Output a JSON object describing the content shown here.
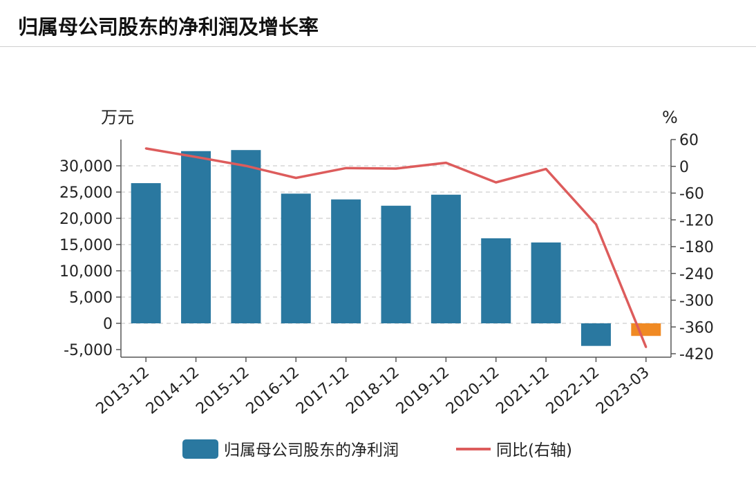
{
  "header": {
    "title": "归属母公司股东的净利润及增长率"
  },
  "chart_data": {
    "type": "bar",
    "categories": [
      "2013-12",
      "2014-12",
      "2015-12",
      "2016-12",
      "2017-12",
      "2018-12",
      "2019-12",
      "2020-12",
      "2021-12",
      "2022-12",
      "2023-03"
    ],
    "series": [
      {
        "name": "归属母公司股东的净利润",
        "type": "bar",
        "axis": "left",
        "color": "#2a78a0",
        "highlight_color": "#f08a24",
        "values": [
          26700,
          32800,
          33000,
          24700,
          23600,
          22400,
          24500,
          16200,
          15400,
          -4300,
          -2400
        ]
      },
      {
        "name": "同比(右轴)",
        "type": "line",
        "axis": "right",
        "color": "#dd5c5c",
        "values": [
          40,
          21,
          1,
          -26,
          -4,
          -5,
          8,
          -36,
          -6,
          -130,
          -405
        ]
      }
    ],
    "y_left": {
      "unit": "万元",
      "range": [
        -6000,
        35000
      ],
      "ticks": [
        -5000,
        0,
        5000,
        10000,
        15000,
        20000,
        25000,
        30000
      ],
      "tick_labels": [
        "-5,000",
        "0",
        "5,000",
        "10,000",
        "15,000",
        "20,000",
        "25,000",
        "30,000"
      ]
    },
    "y_right": {
      "unit": "%",
      "range": [
        -420,
        60
      ],
      "ticks": [
        60,
        0,
        -60,
        -120,
        -180,
        -240,
        -300,
        -360,
        -420
      ],
      "tick_labels": [
        "60",
        "0",
        "-60",
        "-120",
        "-180",
        "-240",
        "-300",
        "-360",
        "-420"
      ]
    },
    "grid": "horizontal dashed",
    "legend_position": "bottom"
  }
}
